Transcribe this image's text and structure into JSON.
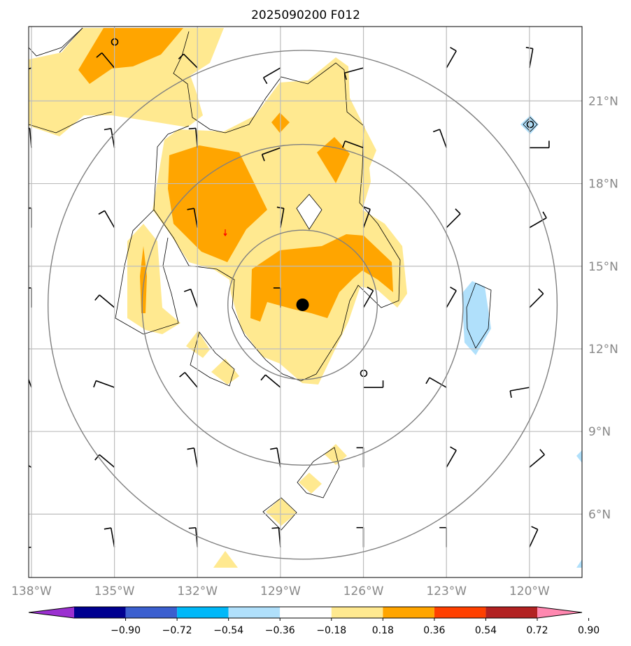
{
  "chart_data": {
    "type": "map-contour",
    "title": "2025090200 F012",
    "x_ticks": [
      {
        "value": -138,
        "label": "138°W"
      },
      {
        "value": -135,
        "label": "135°W"
      },
      {
        "value": -132,
        "label": "132°W"
      },
      {
        "value": -129,
        "label": "129°W"
      },
      {
        "value": -126,
        "label": "126°W"
      },
      {
        "value": -123,
        "label": "123°W"
      },
      {
        "value": -120,
        "label": "120°W"
      }
    ],
    "y_ticks": [
      {
        "value": 6,
        "label": "6°N"
      },
      {
        "value": 9,
        "label": "9°N"
      },
      {
        "value": 12,
        "label": "12°N"
      },
      {
        "value": 15,
        "label": "15°N"
      },
      {
        "value": 18,
        "label": "18°N"
      },
      {
        "value": 21,
        "label": "21°N"
      }
    ],
    "xlim": [
      -138.1,
      -118.1
    ],
    "ylim": [
      3.7,
      23.7
    ],
    "center": {
      "lon": -128.2,
      "lat": 13.6
    },
    "range_ring_radii_deg": [
      2.7,
      5.8,
      9.2
    ],
    "colorbar": {
      "levels": [
        "−0.90",
        "−0.72",
        "−0.54",
        "−0.36",
        "−0.18",
        "0.18",
        "0.36",
        "0.54",
        "0.72",
        "0.90"
      ],
      "colors": [
        "#9b30d0",
        "#000090",
        "#3b5fcf",
        "#00b8f8",
        "#b0e0fb",
        "#ffffff",
        "#ffe990",
        "#ffa500",
        "#ff4000",
        "#b22222",
        "#ff88b0"
      ],
      "extend": "both"
    },
    "colors": {
      "yellow": "#ffe990",
      "orange": "#ffa500",
      "lightblue": "#b0e0fb",
      "grid": "#bdbdbd",
      "ring": "#808080"
    }
  }
}
